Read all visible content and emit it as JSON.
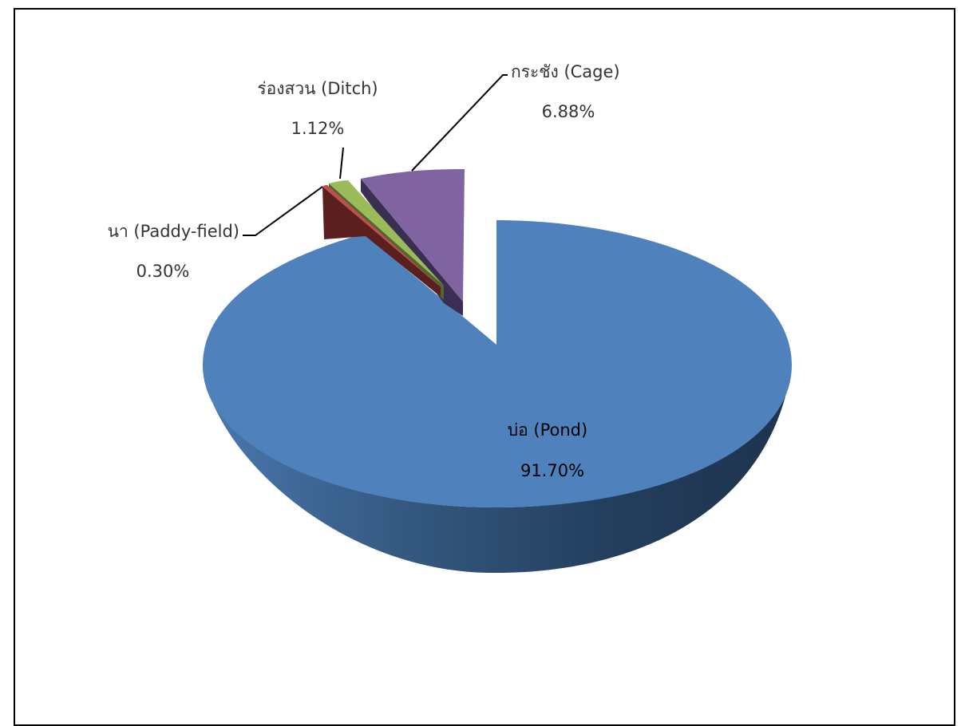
{
  "chart_data": {
    "type": "pie",
    "style": "3d-exploded",
    "slices": [
      {
        "label": "บ่อ (Pond)",
        "value": 91.7,
        "display": "91.70%",
        "color": "#4F81BD"
      },
      {
        "label": "กระชัง (Cage)",
        "value": 6.88,
        "display": "6.88%",
        "color": "#8064A2"
      },
      {
        "label": "ร่องสวน (Ditch)",
        "value": 1.12,
        "display": "1.12%",
        "color": "#9BBB59"
      },
      {
        "label": "นา (Paddy-field)",
        "value": 0.3,
        "display": "0.30%",
        "color": "#C0504D"
      }
    ],
    "legend": "none"
  }
}
